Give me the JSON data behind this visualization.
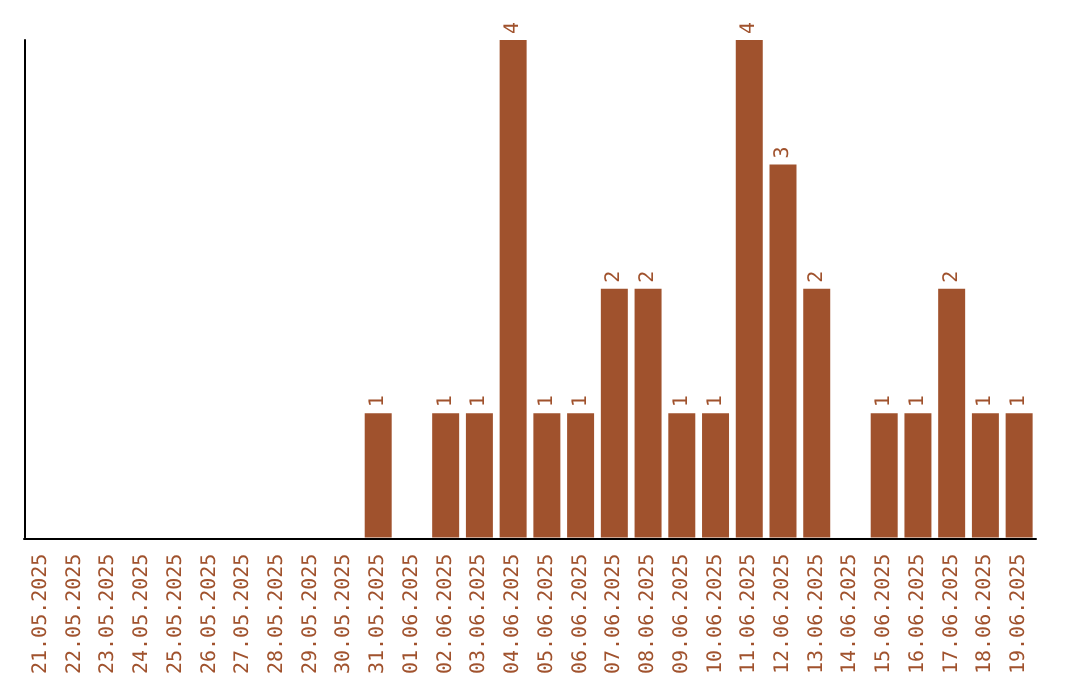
{
  "chart_data": {
    "type": "bar",
    "categories": [
      "21.05.2025",
      "22.05.2025",
      "23.05.2025",
      "24.05.2025",
      "25.05.2025",
      "26.05.2025",
      "27.05.2025",
      "28.05.2025",
      "29.05.2025",
      "30.05.2025",
      "31.05.2025",
      "01.06.2025",
      "02.06.2025",
      "03.06.2025",
      "04.06.2025",
      "05.06.2025",
      "06.06.2025",
      "07.06.2025",
      "08.06.2025",
      "09.06.2025",
      "10.06.2025",
      "11.06.2025",
      "12.06.2025",
      "13.06.2025",
      "14.06.2025",
      "15.06.2025",
      "16.06.2025",
      "17.06.2025",
      "18.06.2025",
      "19.06.2025"
    ],
    "values": [
      0,
      0,
      0,
      0,
      0,
      0,
      0,
      0,
      0,
      0,
      1,
      0,
      1,
      1,
      4,
      1,
      1,
      2,
      2,
      1,
      1,
      4,
      3,
      2,
      0,
      1,
      1,
      2,
      1,
      1
    ],
    "value_labels": [
      null,
      null,
      null,
      null,
      null,
      null,
      null,
      null,
      null,
      null,
      "1",
      null,
      "1",
      "1",
      "4",
      "1",
      "1",
      "2",
      "2",
      "1",
      "1",
      "4",
      "3",
      "2",
      null,
      "1",
      "1",
      "2",
      "1",
      "1"
    ],
    "color": "#a0522d",
    "ylim": [
      0,
      4
    ],
    "tick_labels": "x"
  }
}
